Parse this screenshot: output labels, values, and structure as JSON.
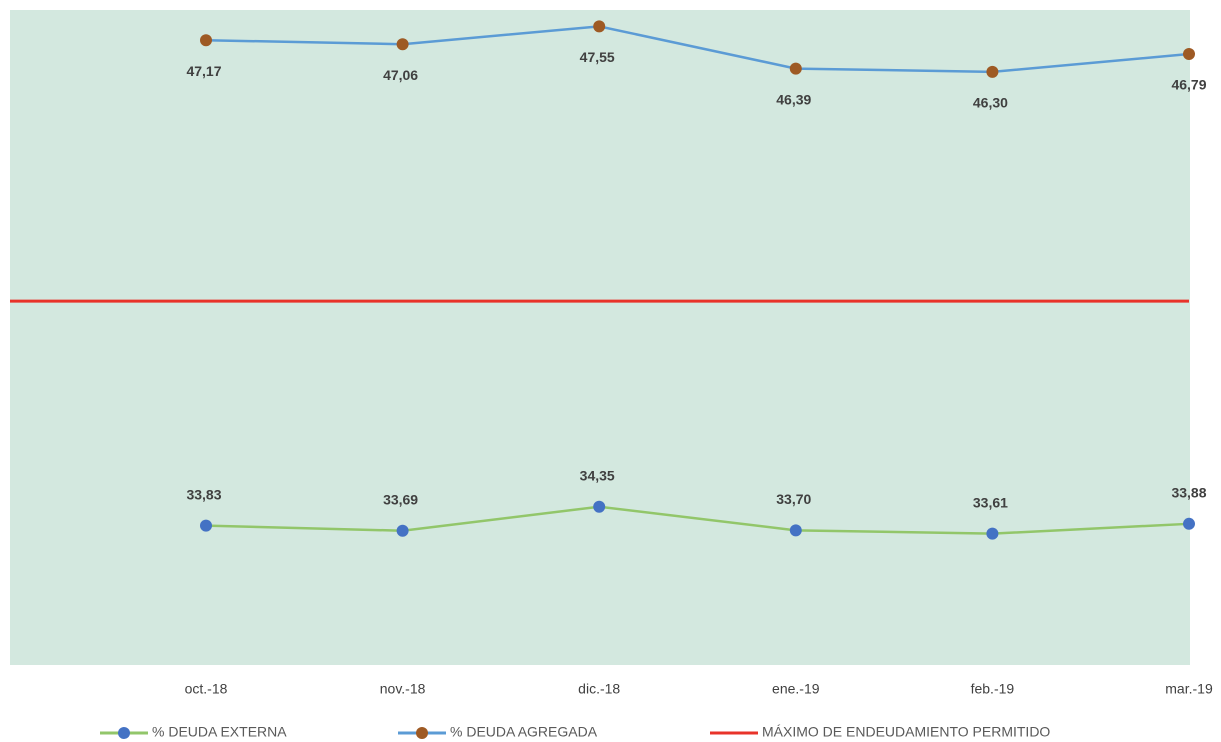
{
  "chart_data": {
    "type": "line",
    "categories": [
      "oct.-18",
      "nov.-18",
      "dic.-18",
      "ene.-19",
      "feb.-19",
      "mar.-19"
    ],
    "ylim": [
      30,
      48
    ],
    "series": [
      {
        "name": "% DEUDA EXTERNA",
        "color": "#92c66a",
        "marker_color": "#4472c4",
        "label_position": "above",
        "values": [
          33.83,
          33.69,
          34.35,
          33.7,
          33.61,
          33.88
        ],
        "value_labels": [
          "33,83",
          "33,69",
          "34,35",
          "33,70",
          "33,61",
          "33,88"
        ]
      },
      {
        "name": "% DEUDA AGREGADA",
        "color": "#5b9bd5",
        "marker_color": "#9e5a24",
        "label_position": "below",
        "values": [
          47.17,
          47.06,
          47.55,
          46.39,
          46.3,
          46.79
        ],
        "value_labels": [
          "47,17",
          "47,06",
          "47,55",
          "46,39",
          "46,30",
          "46,79"
        ]
      },
      {
        "name": "MÁXIMO DE ENDEUDAMIENTO PERMITIDO",
        "color": "#e8332a",
        "values": [
          40,
          40,
          40,
          40,
          40,
          40
        ]
      }
    ]
  }
}
